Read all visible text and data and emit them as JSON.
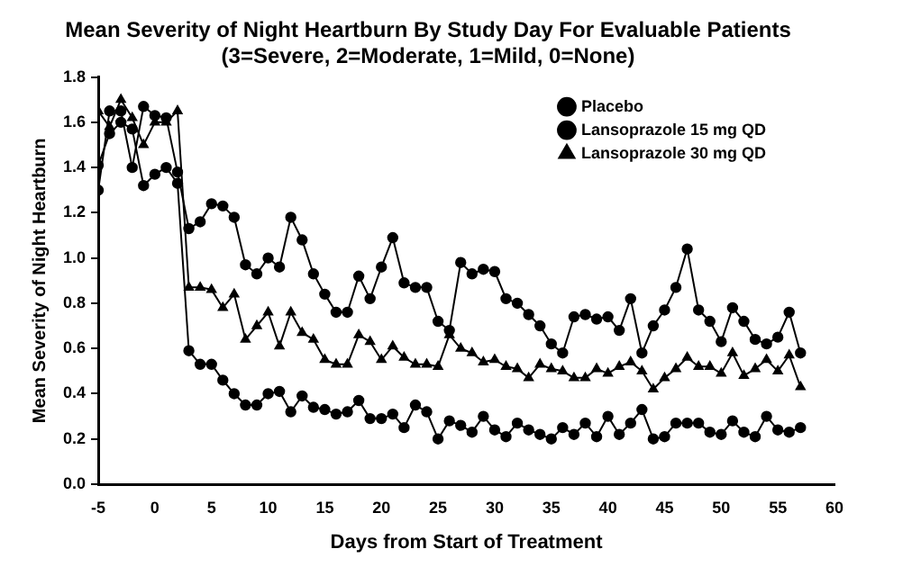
{
  "chart_data": {
    "type": "line",
    "title": [
      "Mean Severity of Night Heartburn By Study Day For Evaluable Patients",
      "(3=Severe, 2=Moderate, 1=Mild, 0=None)"
    ],
    "xlabel": "Days from Start of Treatment",
    "ylabel": "Mean Severity of Night Heartburn",
    "x": [
      -5,
      -4,
      -3,
      -2,
      -1,
      0,
      1,
      2,
      3,
      4,
      5,
      6,
      7,
      8,
      9,
      10,
      11,
      12,
      13,
      14,
      15,
      16,
      17,
      18,
      19,
      20,
      21,
      22,
      23,
      24,
      25,
      26,
      27,
      28,
      29,
      30,
      31,
      32,
      33,
      34,
      35,
      36,
      37,
      38,
      39,
      40,
      41,
      42,
      43,
      44,
      45,
      46,
      47,
      48,
      49,
      50,
      51,
      52,
      53,
      54,
      55,
      56,
      57
    ],
    "series": [
      {
        "name": "Placebo",
        "color": "#000000",
        "marker": "circle",
        "values": [
          1.3,
          1.65,
          1.65,
          1.4,
          1.67,
          1.63,
          1.62,
          1.38,
          1.13,
          1.16,
          1.24,
          1.23,
          1.18,
          0.97,
          0.93,
          1.0,
          0.96,
          1.18,
          1.08,
          0.93,
          0.84,
          0.76,
          0.76,
          0.92,
          0.82,
          0.96,
          1.09,
          0.89,
          0.87,
          0.87,
          0.72,
          0.68,
          0.98,
          0.93,
          0.95,
          0.94,
          0.82,
          0.8,
          0.75,
          0.7,
          0.62,
          0.58,
          0.74,
          0.75,
          0.73,
          0.74,
          0.68,
          0.82,
          0.58,
          0.7,
          0.77,
          0.87,
          1.04,
          0.77,
          0.72,
          0.63,
          0.78,
          0.72,
          0.64,
          0.62,
          0.65,
          0.76,
          0.58
        ]
      },
      {
        "name": "Lansoprazole 15 mg QD",
        "color": "#000000",
        "marker": "circle",
        "values": [
          1.41,
          1.55,
          1.6,
          1.57,
          1.32,
          1.37,
          1.4,
          1.33,
          0.59,
          0.53,
          0.53,
          0.46,
          0.4,
          0.35,
          0.35,
          0.4,
          0.41,
          0.32,
          0.39,
          0.34,
          0.33,
          0.31,
          0.32,
          0.37,
          0.29,
          0.29,
          0.31,
          0.25,
          0.35,
          0.32,
          0.2,
          0.28,
          0.26,
          0.23,
          0.3,
          0.24,
          0.21,
          0.27,
          0.24,
          0.22,
          0.2,
          0.25,
          0.22,
          0.27,
          0.21,
          0.3,
          0.22,
          0.27,
          0.33,
          0.2,
          0.21,
          0.27,
          0.27,
          0.27,
          0.23,
          0.22,
          0.28,
          0.23,
          0.21,
          0.3,
          0.24,
          0.23,
          0.25
        ]
      },
      {
        "name": "Lansoprazole 30 mg QD",
        "color": "#000000",
        "marker": "triangle",
        "values": [
          1.65,
          1.58,
          1.7,
          1.62,
          1.5,
          1.6,
          1.6,
          1.65,
          0.87,
          0.87,
          0.86,
          0.78,
          0.84,
          0.64,
          0.7,
          0.76,
          0.61,
          0.76,
          0.67,
          0.64,
          0.55,
          0.53,
          0.53,
          0.66,
          0.63,
          0.55,
          0.61,
          0.56,
          0.53,
          0.53,
          0.52,
          0.66,
          0.6,
          0.58,
          0.54,
          0.55,
          0.52,
          0.51,
          0.47,
          0.53,
          0.51,
          0.5,
          0.47,
          0.47,
          0.51,
          0.49,
          0.52,
          0.54,
          0.5,
          0.42,
          0.47,
          0.51,
          0.56,
          0.52,
          0.52,
          0.49,
          0.58,
          0.48,
          0.51,
          0.55,
          0.5,
          0.57,
          0.43
        ]
      }
    ],
    "xlim": [
      -5,
      60
    ],
    "xticks": [
      -5,
      0,
      5,
      10,
      15,
      20,
      25,
      30,
      35,
      40,
      45,
      50,
      55,
      60
    ],
    "ylim": [
      0,
      1.8
    ],
    "yticks": [
      {
        "value": 0,
        "label": "0.0"
      },
      {
        "value": 0.2,
        "label": "0.2"
      },
      {
        "value": 0.4,
        "label": "0.4"
      },
      {
        "value": 0.6,
        "label": "0.6"
      },
      {
        "value": 0.8,
        "label": "0.8"
      },
      {
        "value": 1.0,
        "label": "1.0"
      },
      {
        "value": 1.2,
        "label": "1.2"
      },
      {
        "value": 1.4,
        "label": "1.4"
      },
      {
        "value": 1.6,
        "label": "1.6"
      },
      {
        "value": 1.8,
        "label": "1.8"
      }
    ],
    "grid": false,
    "legend": "top right",
    "line_style": "solid"
  }
}
